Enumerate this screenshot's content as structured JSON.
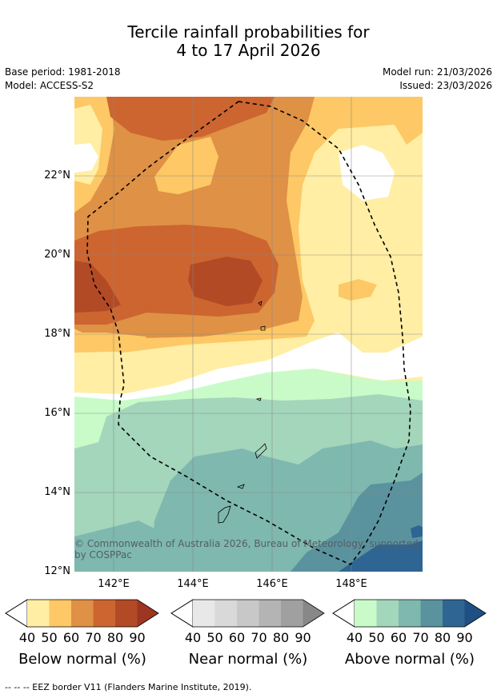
{
  "title": {
    "line1": "Tercile rainfall probabilities for",
    "line2": "4 to 17 April 2026"
  },
  "meta": {
    "base_period": "Base period: 1981-2018",
    "model": "Model: ACCESS-S2",
    "model_run": "Model run: 21/03/2026",
    "issued": "Issued: 23/03/2026"
  },
  "map": {
    "lat_ticks": [
      "22°N",
      "20°N",
      "18°N",
      "16°N",
      "14°N",
      "12°N"
    ],
    "lon_ticks": [
      "142°E",
      "144°E",
      "146°E",
      "148°E"
    ],
    "copyright": "© Commonwealth of Australia 2026, Bureau of Meteorology, supported by COSPPac"
  },
  "colorbars": [
    {
      "title": "Below normal (%)",
      "ticks": [
        "40",
        "50",
        "60",
        "70",
        "80",
        "90"
      ],
      "colors": [
        "#ffeea4",
        "#fdc865",
        "#df9146",
        "#cc6530",
        "#b24a26",
        "#9e3521"
      ]
    },
    {
      "title": "Near normal (%)",
      "ticks": [
        "40",
        "50",
        "60",
        "70",
        "80",
        "90"
      ],
      "colors": [
        "#e8e8e8",
        "#d9d9d9",
        "#c8c8c8",
        "#b4b4b4",
        "#a0a0a0",
        "#888888"
      ]
    },
    {
      "title": "Above normal (%)",
      "ticks": [
        "40",
        "50",
        "60",
        "70",
        "80",
        "90"
      ],
      "colors": [
        "#c9fbc9",
        "#a3d6bb",
        "#7eb8ae",
        "#5a939e",
        "#2f6593",
        "#1f4f83"
      ]
    }
  ],
  "footnote": "--  --  -- EEZ border V11 (Flanders Marine Institute, 2019)."
}
